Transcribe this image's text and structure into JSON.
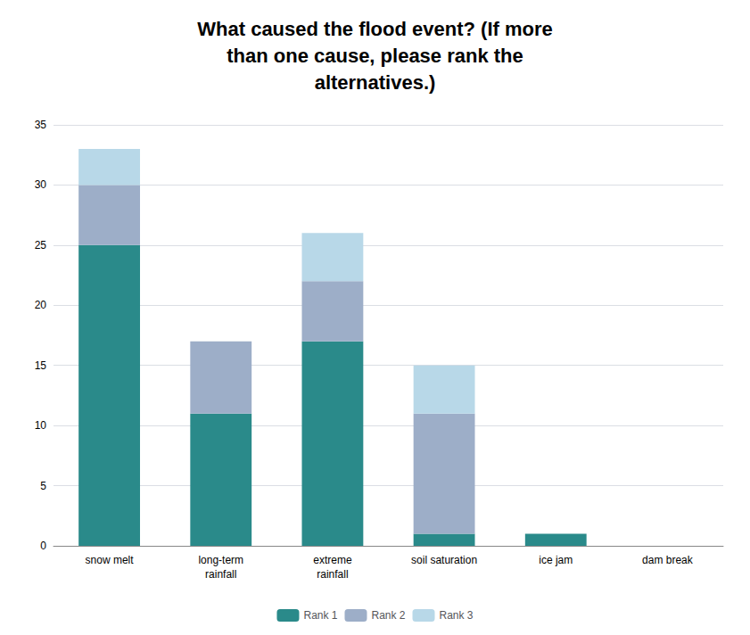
{
  "chart_data": {
    "type": "bar",
    "stacked": true,
    "title": "What caused the flood event? (If more\nthan one cause, please rank the\nalternatives.)",
    "categories": [
      "snow melt",
      "long-term\nrainfall",
      "extreme\nrainfall",
      "soil saturation",
      "ice jam",
      "dam break"
    ],
    "series": [
      {
        "name": "Rank 1",
        "color": "#2a8a8a",
        "values": [
          25,
          11,
          17,
          1,
          1,
          0
        ]
      },
      {
        "name": "Rank 2",
        "color": "#9daec8",
        "values": [
          5,
          6,
          5,
          10,
          0,
          0
        ]
      },
      {
        "name": "Rank 3",
        "color": "#b8d8e8",
        "values": [
          3,
          0,
          4,
          4,
          0,
          0
        ]
      }
    ],
    "ylim": [
      0,
      35
    ],
    "yticks": [
      0,
      5,
      10,
      15,
      20,
      25,
      30,
      35
    ],
    "grid": true,
    "legend": "bottom"
  }
}
